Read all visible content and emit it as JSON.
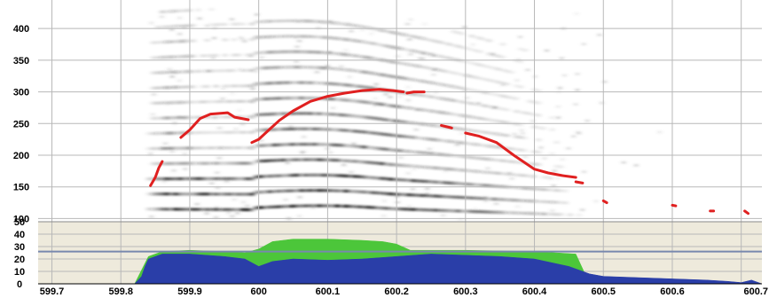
{
  "chart_data": [
    {
      "type": "spectrogram",
      "xlim": [
        599.68,
        600.73
      ],
      "ylim": [
        95,
        445
      ],
      "x_ticks": [
        599.7,
        599.8,
        599.9,
        600,
        600.1,
        600.2,
        600.3,
        600.4,
        600.5,
        600.6,
        600.7
      ],
      "x_tick_labels": [
        "599.7",
        "599.8",
        "599.9",
        "600",
        "600.1",
        "600.2",
        "600.3",
        "600.4",
        "600.5",
        "600.6",
        "600.7"
      ],
      "y_ticks": [
        100,
        150,
        200,
        250,
        300,
        350,
        400
      ],
      "y_tick_labels": [
        "100",
        "150",
        "200",
        "250",
        "300",
        "350",
        "400"
      ],
      "grid": true,
      "pitch_track": [
        [
          [
            599.843,
            152
          ],
          [
            599.85,
            165
          ],
          [
            599.855,
            180
          ],
          [
            599.86,
            190
          ]
        ],
        [
          [
            599.887,
            228
          ],
          [
            599.9,
            240
          ],
          [
            599.915,
            258
          ],
          [
            599.93,
            265
          ],
          [
            599.955,
            267
          ],
          [
            599.965,
            260
          ],
          [
            599.985,
            256
          ]
        ],
        [
          [
            599.99,
            220
          ],
          [
            600.0,
            225
          ],
          [
            600.015,
            240
          ],
          [
            600.03,
            255
          ],
          [
            600.05,
            270
          ],
          [
            600.075,
            285
          ],
          [
            600.1,
            293
          ],
          [
            600.125,
            298
          ],
          [
            600.15,
            302
          ],
          [
            600.175,
            304
          ],
          [
            600.195,
            302
          ],
          [
            600.21,
            300
          ]
        ],
        [
          [
            600.215,
            298
          ],
          [
            600.225,
            300
          ],
          [
            600.24,
            300
          ]
        ],
        [
          [
            600.265,
            247
          ],
          [
            600.28,
            243
          ]
        ],
        [
          [
            600.3,
            235
          ],
          [
            600.32,
            230
          ],
          [
            600.345,
            220
          ],
          [
            600.37,
            200
          ],
          [
            600.4,
            178
          ],
          [
            600.42,
            172
          ],
          [
            600.44,
            168
          ],
          [
            600.46,
            165
          ]
        ],
        [
          [
            600.46,
            158
          ],
          [
            600.47,
            156
          ]
        ],
        [
          [
            600.5,
            128
          ],
          [
            600.505,
            125
          ]
        ],
        [
          [
            600.6,
            121
          ],
          [
            600.605,
            120
          ]
        ],
        [
          [
            600.655,
            112
          ],
          [
            600.66,
            112
          ]
        ],
        [
          [
            600.705,
            112
          ],
          [
            600.71,
            108
          ]
        ]
      ],
      "pitch_color": "#e02020"
    },
    {
      "type": "area",
      "xlim": [
        599.68,
        600.73
      ],
      "ylim": [
        0,
        50
      ],
      "y_ticks": [
        0,
        10,
        20,
        30,
        40,
        50
      ],
      "y_tick_labels": [
        "0",
        "10",
        "20",
        "30",
        "40",
        "50"
      ],
      "reference_line": 26,
      "series": [
        {
          "color": "#2a3ea8",
          "x": [
            599.68,
            599.82,
            599.83,
            599.835,
            599.84,
            599.86,
            599.9,
            599.95,
            599.98,
            600.0,
            600.02,
            600.05,
            600.1,
            600.15,
            600.2,
            600.25,
            600.3,
            600.35,
            600.4,
            600.45,
            600.48,
            600.5,
            600.55,
            600.6,
            600.65,
            600.68,
            600.7,
            600.715,
            600.72,
            600.73
          ],
          "y": [
            0,
            0,
            6,
            14,
            20,
            24,
            24,
            22,
            20,
            14,
            18,
            20,
            19,
            20,
            22,
            24,
            23,
            22,
            20,
            14,
            8,
            6,
            5,
            4,
            3,
            2,
            1,
            3,
            2,
            0
          ]
        },
        {
          "color": "#4cc63a",
          "x": [
            599.82,
            599.84,
            599.86,
            599.9,
            599.95,
            599.98,
            600.0,
            600.02,
            600.05,
            600.1,
            600.15,
            600.18,
            600.2,
            600.22,
            600.3,
            600.4,
            600.46,
            600.48
          ],
          "y": [
            0,
            22,
            26,
            27,
            26,
            25,
            28,
            34,
            36,
            36,
            35,
            34,
            32,
            27,
            27,
            26,
            24,
            0
          ]
        }
      ]
    }
  ],
  "colors": {
    "background": "#ffffff",
    "lower_panel": "#eeeadc",
    "grid": "#b8b8b8",
    "reference_line": "#7888ae"
  }
}
